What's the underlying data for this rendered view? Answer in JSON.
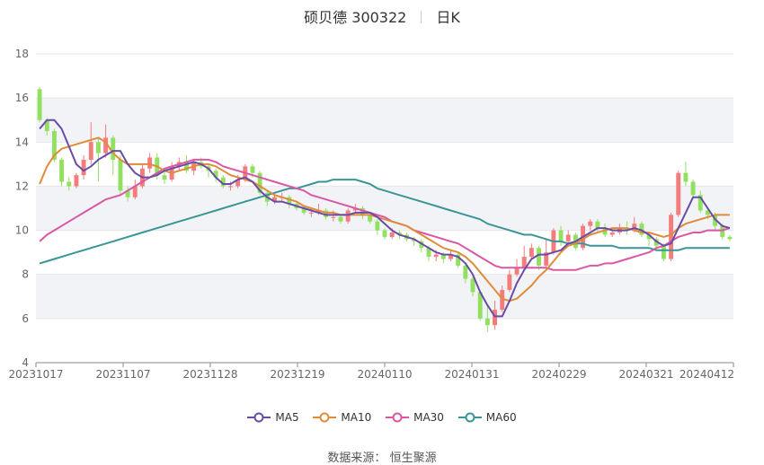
{
  "header": {
    "stock_name": "硕贝德",
    "stock_code": "300322",
    "period": "日K"
  },
  "source": {
    "label": "数据来源：",
    "value": "恒生聚源"
  },
  "colors": {
    "up": "#f47c7c",
    "down": "#91e060",
    "grid_band": "#f2f3f7",
    "ma5": "#6a4ca7",
    "ma10": "#e08b3a",
    "ma30": "#d957a4",
    "ma60": "#3a9696"
  },
  "chart_data": {
    "type": "candlestick",
    "title": "硕贝德 300322 日K",
    "ylim": [
      4,
      18
    ],
    "yticks": [
      4,
      6,
      8,
      10,
      12,
      14,
      16,
      18
    ],
    "xtick_labels": [
      "20231017",
      "20231107",
      "20231128",
      "20231219",
      "20240110",
      "20240131",
      "20240229",
      "20240321",
      "20240412"
    ],
    "legend_position": "bottom",
    "legend": [
      "MA5",
      "MA10",
      "MA30",
      "MA60"
    ],
    "candles": [
      [
        16.4,
        15.0,
        16.5,
        14.9
      ],
      [
        15.0,
        14.5,
        15.1,
        14.3
      ],
      [
        14.5,
        13.2,
        14.6,
        13.1
      ],
      [
        13.2,
        12.2,
        13.3,
        12.0
      ],
      [
        12.2,
        12.0,
        12.4,
        11.8
      ],
      [
        12.0,
        12.5,
        12.6,
        11.9
      ],
      [
        12.5,
        13.2,
        13.4,
        12.3
      ],
      [
        13.2,
        14.0,
        14.9,
        13.0
      ],
      [
        14.0,
        13.5,
        14.2,
        12.2
      ],
      [
        13.5,
        14.2,
        14.8,
        13.3
      ],
      [
        14.2,
        13.2,
        14.3,
        12.5
      ],
      [
        13.2,
        11.8,
        13.4,
        11.6
      ],
      [
        11.8,
        11.5,
        12.0,
        11.3
      ],
      [
        11.5,
        12.0,
        12.3,
        11.4
      ],
      [
        12.0,
        12.8,
        13.0,
        11.9
      ],
      [
        12.8,
        13.3,
        13.5,
        12.6
      ],
      [
        13.3,
        12.5,
        13.5,
        12.3
      ],
      [
        12.5,
        12.3,
        12.7,
        12.1
      ],
      [
        12.3,
        12.9,
        13.1,
        12.2
      ],
      [
        12.9,
        13.1,
        13.3,
        12.7
      ],
      [
        13.1,
        12.7,
        13.4,
        12.6
      ],
      [
        12.7,
        13.1,
        13.2,
        12.5
      ],
      [
        13.1,
        12.9,
        13.3,
        12.8
      ],
      [
        12.9,
        12.7,
        13.0,
        12.4
      ],
      [
        12.7,
        12.4,
        12.8,
        12.2
      ],
      [
        12.4,
        12.0,
        12.5,
        11.9
      ],
      [
        12.0,
        12.0,
        12.2,
        11.8
      ],
      [
        12.0,
        12.3,
        12.5,
        11.9
      ],
      [
        12.3,
        12.9,
        13.0,
        12.2
      ],
      [
        12.9,
        12.6,
        13.0,
        12.4
      ],
      [
        12.6,
        11.7,
        12.7,
        11.6
      ],
      [
        11.7,
        11.3,
        11.8,
        11.1
      ],
      [
        11.3,
        11.5,
        11.7,
        11.2
      ],
      [
        11.5,
        11.5,
        11.7,
        11.3
      ],
      [
        11.5,
        11.2,
        11.6,
        11.0
      ],
      [
        11.2,
        11.0,
        11.3,
        10.9
      ],
      [
        11.0,
        10.8,
        11.1,
        10.7
      ],
      [
        10.8,
        10.8,
        11.0,
        10.6
      ],
      [
        10.8,
        10.9,
        11.2,
        10.7
      ],
      [
        10.9,
        10.6,
        11.0,
        10.5
      ],
      [
        10.6,
        10.6,
        10.9,
        10.4
      ],
      [
        10.6,
        10.4,
        10.7,
        10.3
      ],
      [
        10.4,
        10.9,
        11.0,
        10.3
      ],
      [
        10.9,
        11.0,
        11.2,
        10.8
      ],
      [
        11.0,
        10.7,
        11.1,
        10.5
      ],
      [
        10.7,
        10.4,
        10.8,
        10.3
      ],
      [
        10.4,
        10.0,
        10.5,
        9.8
      ],
      [
        10.0,
        9.7,
        10.1,
        9.6
      ],
      [
        9.7,
        9.9,
        10.1,
        9.6
      ],
      [
        9.9,
        9.8,
        10.0,
        9.6
      ],
      [
        9.8,
        9.6,
        9.9,
        9.5
      ],
      [
        9.6,
        9.5,
        9.7,
        9.3
      ],
      [
        9.5,
        9.2,
        9.6,
        9.0
      ],
      [
        9.2,
        8.8,
        9.3,
        8.6
      ],
      [
        8.8,
        8.9,
        9.1,
        8.6
      ],
      [
        8.9,
        8.7,
        9.0,
        8.5
      ],
      [
        8.7,
        8.9,
        9.1,
        8.6
      ],
      [
        8.9,
        8.4,
        9.0,
        8.3
      ],
      [
        8.4,
        7.8,
        8.5,
        7.6
      ],
      [
        7.8,
        7.2,
        7.9,
        7.0
      ],
      [
        7.2,
        6.0,
        7.3,
        5.9
      ],
      [
        6.0,
        5.7,
        6.6,
        5.4
      ],
      [
        5.7,
        6.4,
        6.8,
        5.5
      ],
      [
        6.4,
        7.3,
        7.5,
        6.3
      ],
      [
        7.3,
        8.0,
        8.2,
        7.2
      ],
      [
        8.0,
        8.3,
        8.7,
        7.9
      ],
      [
        8.3,
        8.8,
        9.3,
        8.2
      ],
      [
        8.8,
        9.2,
        9.4,
        8.7
      ],
      [
        9.2,
        8.4,
        9.3,
        8.2
      ],
      [
        8.4,
        9.0,
        9.6,
        8.3
      ],
      [
        9.0,
        10.0,
        10.1,
        8.9
      ],
      [
        10.0,
        9.5,
        10.2,
        9.3
      ],
      [
        9.5,
        9.8,
        10.0,
        9.3
      ],
      [
        9.8,
        9.2,
        9.9,
        9.1
      ],
      [
        9.2,
        10.2,
        10.3,
        9.1
      ],
      [
        10.2,
        10.4,
        10.5,
        10.0
      ],
      [
        10.4,
        10.1,
        10.5,
        9.9
      ],
      [
        10.1,
        9.8,
        10.3,
        9.7
      ],
      [
        9.8,
        9.9,
        10.1,
        9.7
      ],
      [
        9.9,
        10.1,
        10.3,
        9.8
      ],
      [
        10.1,
        10.0,
        10.4,
        9.8
      ],
      [
        10.0,
        10.3,
        10.6,
        9.9
      ],
      [
        10.3,
        9.8,
        10.4,
        9.7
      ],
      [
        9.8,
        9.6,
        9.9,
        9.3
      ],
      [
        9.6,
        9.3,
        9.7,
        9.1
      ],
      [
        9.3,
        8.7,
        9.4,
        8.6
      ],
      [
        8.7,
        10.7,
        10.8,
        8.6
      ],
      [
        10.7,
        12.6,
        12.7,
        10.6
      ],
      [
        12.6,
        12.2,
        13.1,
        12.0
      ],
      [
        12.2,
        11.6,
        12.3,
        11.4
      ],
      [
        11.6,
        10.9,
        11.8,
        10.8
      ],
      [
        10.9,
        10.7,
        11.0,
        10.5
      ],
      [
        10.7,
        10.2,
        10.8,
        10.0
      ],
      [
        10.2,
        9.7,
        10.3,
        9.6
      ],
      [
        9.7,
        9.6,
        9.8,
        9.5
      ]
    ],
    "ma5": [
      14.6,
      15.0,
      15.0,
      14.6,
      13.8,
      13.0,
      12.7,
      12.9,
      13.2,
      13.4,
      13.6,
      13.6,
      13.0,
      12.6,
      12.4,
      12.4,
      12.5,
      12.7,
      12.8,
      12.9,
      13.0,
      13.1,
      13.0,
      12.8,
      12.4,
      12.1,
      12.1,
      12.3,
      12.4,
      12.2,
      11.8,
      11.5,
      11.3,
      11.3,
      11.2,
      11.1,
      11.0,
      10.9,
      10.8,
      10.7,
      10.7,
      10.7,
      10.7,
      10.8,
      10.8,
      10.8,
      10.6,
      10.3,
      10.0,
      9.8,
      9.7,
      9.6,
      9.4,
      9.2,
      9.0,
      8.9,
      8.9,
      8.8,
      8.5,
      8.0,
      7.2,
      6.6,
      6.1,
      6.1,
      6.8,
      7.6,
      8.2,
      8.7,
      8.9,
      8.9,
      9.0,
      9.1,
      9.4,
      9.5,
      9.7,
      9.9,
      10.1,
      10.1,
      10.0,
      10.0,
      10.0,
      10.1,
      10.0,
      9.8,
      9.5,
      9.3,
      9.4,
      10.1,
      10.8,
      11.5,
      11.5,
      11.0,
      10.5,
      10.2,
      10.1
    ],
    "ma10": [
      12.1,
      12.9,
      13.4,
      13.7,
      13.8,
      13.9,
      14.0,
      14.1,
      14.2,
      14.0,
      13.5,
      13.2,
      13.0,
      13.0,
      13.0,
      13.0,
      12.9,
      12.7,
      12.6,
      12.7,
      12.8,
      12.9,
      13.0,
      13.0,
      12.9,
      12.7,
      12.5,
      12.4,
      12.3,
      12.2,
      12.0,
      11.8,
      11.6,
      11.5,
      11.4,
      11.3,
      11.1,
      11.0,
      10.9,
      10.8,
      10.8,
      10.7,
      10.7,
      10.7,
      10.7,
      10.7,
      10.6,
      10.5,
      10.4,
      10.3,
      10.2,
      10.0,
      9.8,
      9.6,
      9.4,
      9.2,
      9.1,
      9.0,
      8.8,
      8.5,
      8.1,
      7.7,
      7.3,
      6.9,
      6.8,
      6.9,
      7.2,
      7.5,
      7.9,
      8.2,
      8.6,
      9.0,
      9.3,
      9.4,
      9.6,
      9.8,
      9.9,
      10.0,
      10.1,
      10.1,
      10.1,
      10.0,
      9.9,
      9.9,
      9.8,
      9.7,
      9.8,
      10.1,
      10.3,
      10.4,
      10.5,
      10.6,
      10.7,
      10.7,
      10.7
    ],
    "ma30": [
      9.5,
      9.8,
      10.0,
      10.2,
      10.4,
      10.6,
      10.8,
      11.0,
      11.2,
      11.4,
      11.5,
      11.6,
      11.8,
      12.0,
      12.2,
      12.4,
      12.6,
      12.8,
      12.9,
      13.0,
      13.1,
      13.2,
      13.2,
      13.2,
      13.1,
      12.9,
      12.8,
      12.7,
      12.6,
      12.5,
      12.4,
      12.3,
      12.2,
      12.1,
      12.0,
      11.9,
      11.8,
      11.6,
      11.5,
      11.4,
      11.3,
      11.2,
      11.1,
      11.0,
      10.9,
      10.8,
      10.7,
      10.6,
      10.4,
      10.3,
      10.2,
      10.0,
      9.9,
      9.8,
      9.7,
      9.6,
      9.5,
      9.4,
      9.2,
      9.0,
      8.8,
      8.6,
      8.4,
      8.3,
      8.3,
      8.3,
      8.3,
      8.3,
      8.3,
      8.3,
      8.2,
      8.2,
      8.2,
      8.2,
      8.3,
      8.4,
      8.4,
      8.5,
      8.5,
      8.6,
      8.7,
      8.8,
      8.9,
      9.0,
      9.2,
      9.3,
      9.5,
      9.7,
      9.8,
      9.9,
      9.9,
      10.0,
      10.0,
      10.0,
      10.1
    ],
    "ma60": [
      8.5,
      8.6,
      8.7,
      8.8,
      8.9,
      9.0,
      9.1,
      9.2,
      9.3,
      9.4,
      9.5,
      9.6,
      9.7,
      9.8,
      9.9,
      10.0,
      10.1,
      10.2,
      10.3,
      10.4,
      10.5,
      10.6,
      10.7,
      10.8,
      10.9,
      11.0,
      11.1,
      11.2,
      11.3,
      11.4,
      11.5,
      11.6,
      11.7,
      11.8,
      11.9,
      11.9,
      12.0,
      12.1,
      12.2,
      12.2,
      12.3,
      12.3,
      12.3,
      12.3,
      12.2,
      12.1,
      11.9,
      11.8,
      11.7,
      11.6,
      11.5,
      11.4,
      11.3,
      11.2,
      11.1,
      11.0,
      10.9,
      10.8,
      10.7,
      10.6,
      10.5,
      10.3,
      10.2,
      10.1,
      10.0,
      9.9,
      9.8,
      9.8,
      9.7,
      9.6,
      9.5,
      9.5,
      9.4,
      9.4,
      9.4,
      9.3,
      9.3,
      9.3,
      9.3,
      9.2,
      9.2,
      9.2,
      9.2,
      9.2,
      9.1,
      9.1,
      9.1,
      9.1,
      9.2,
      9.2,
      9.2,
      9.2,
      9.2,
      9.2,
      9.2
    ]
  }
}
